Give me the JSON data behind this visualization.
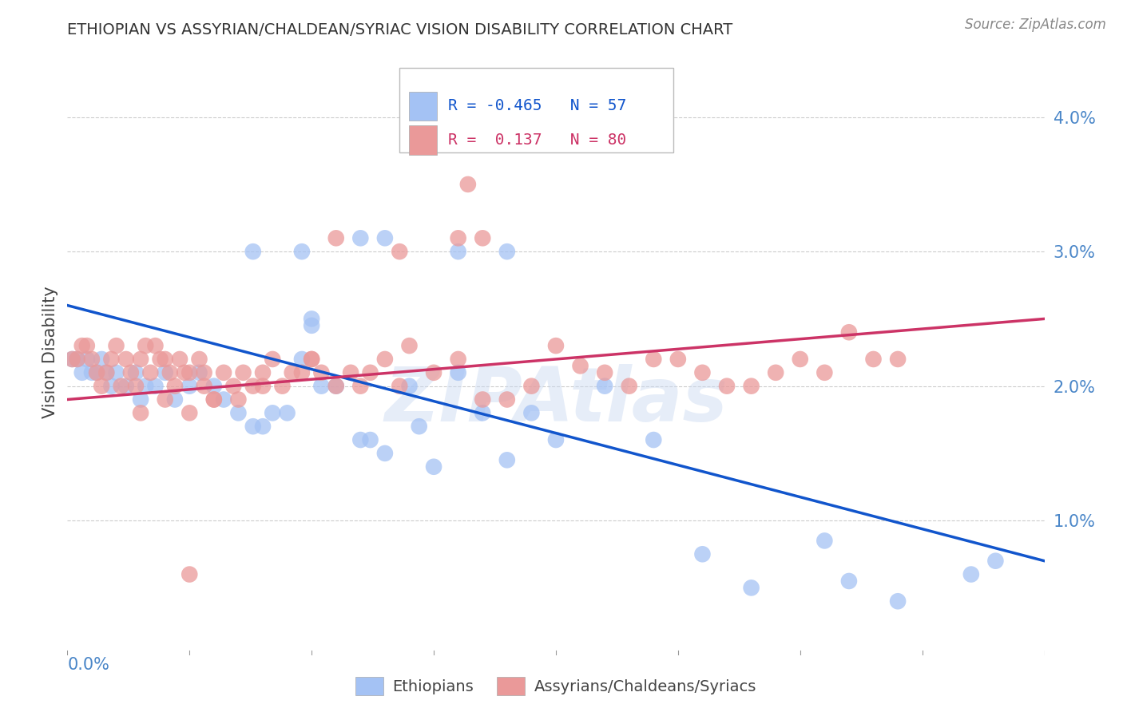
{
  "title": "ETHIOPIAN VS ASSYRIAN/CHALDEAN/SYRIAC VISION DISABILITY CORRELATION CHART",
  "source": "Source: ZipAtlas.com",
  "ylabel": "Vision Disability",
  "xlim": [
    0.0,
    0.2
  ],
  "ylim": [
    0.0,
    0.045
  ],
  "watermark": "ZIPAtlas",
  "legend_R_blue": "-0.465",
  "legend_N_blue": "57",
  "legend_R_pink": "0.137",
  "legend_N_pink": "80",
  "blue_color": "#a4c2f4",
  "pink_color": "#ea9999",
  "line_blue_color": "#1155cc",
  "line_pink_color": "#cc3366",
  "blue_line_start_y": 0.026,
  "blue_line_end_y": 0.007,
  "pink_line_start_y": 0.019,
  "pink_line_end_y": 0.025,
  "background_color": "#ffffff",
  "grid_color": "#cccccc",
  "title_color": "#333333",
  "axis_label_color": "#4a86c8",
  "legend_text_color_blue": "#1155cc",
  "legend_text_color_pink": "#cc3366",
  "blue_x": [
    0.001,
    0.002,
    0.003,
    0.004,
    0.005,
    0.006,
    0.007,
    0.008,
    0.009,
    0.01,
    0.012,
    0.014,
    0.015,
    0.016,
    0.018,
    0.02,
    0.022,
    0.025,
    0.027,
    0.03,
    0.032,
    0.035,
    0.038,
    0.04,
    0.042,
    0.045,
    0.048,
    0.05,
    0.052,
    0.055,
    0.06,
    0.062,
    0.065,
    0.07,
    0.072,
    0.075,
    0.08,
    0.085,
    0.09,
    0.095,
    0.038,
    0.048,
    0.05,
    0.06,
    0.065,
    0.08,
    0.09,
    0.1,
    0.11,
    0.12,
    0.13,
    0.14,
    0.155,
    0.16,
    0.17,
    0.185,
    0.19
  ],
  "blue_y": [
    0.022,
    0.022,
    0.021,
    0.022,
    0.021,
    0.021,
    0.022,
    0.021,
    0.02,
    0.021,
    0.02,
    0.021,
    0.019,
    0.02,
    0.02,
    0.021,
    0.019,
    0.02,
    0.021,
    0.02,
    0.019,
    0.018,
    0.017,
    0.017,
    0.018,
    0.018,
    0.022,
    0.025,
    0.02,
    0.02,
    0.016,
    0.016,
    0.015,
    0.02,
    0.017,
    0.014,
    0.021,
    0.018,
    0.0145,
    0.018,
    0.03,
    0.03,
    0.0245,
    0.031,
    0.031,
    0.03,
    0.03,
    0.016,
    0.02,
    0.016,
    0.0075,
    0.005,
    0.0085,
    0.0055,
    0.004,
    0.006,
    0.007
  ],
  "pink_x": [
    0.001,
    0.002,
    0.003,
    0.004,
    0.005,
    0.006,
    0.007,
    0.008,
    0.009,
    0.01,
    0.011,
    0.012,
    0.013,
    0.014,
    0.015,
    0.016,
    0.017,
    0.018,
    0.019,
    0.02,
    0.021,
    0.022,
    0.023,
    0.024,
    0.025,
    0.027,
    0.028,
    0.03,
    0.032,
    0.034,
    0.036,
    0.038,
    0.04,
    0.042,
    0.044,
    0.046,
    0.048,
    0.05,
    0.052,
    0.055,
    0.058,
    0.06,
    0.062,
    0.065,
    0.068,
    0.07,
    0.075,
    0.08,
    0.082,
    0.085,
    0.09,
    0.095,
    0.1,
    0.105,
    0.11,
    0.115,
    0.12,
    0.125,
    0.13,
    0.135,
    0.14,
    0.145,
    0.15,
    0.155,
    0.16,
    0.165,
    0.17,
    0.025,
    0.03,
    0.035,
    0.028,
    0.04,
    0.05,
    0.055,
    0.068,
    0.08,
    0.085,
    0.02,
    0.015,
    0.025
  ],
  "pink_y": [
    0.022,
    0.022,
    0.023,
    0.023,
    0.022,
    0.021,
    0.02,
    0.021,
    0.022,
    0.023,
    0.02,
    0.022,
    0.021,
    0.02,
    0.022,
    0.023,
    0.021,
    0.023,
    0.022,
    0.022,
    0.021,
    0.02,
    0.022,
    0.021,
    0.021,
    0.022,
    0.02,
    0.019,
    0.021,
    0.02,
    0.021,
    0.02,
    0.02,
    0.022,
    0.02,
    0.021,
    0.021,
    0.022,
    0.021,
    0.02,
    0.021,
    0.02,
    0.021,
    0.022,
    0.02,
    0.023,
    0.021,
    0.022,
    0.035,
    0.019,
    0.019,
    0.02,
    0.023,
    0.0215,
    0.021,
    0.02,
    0.022,
    0.022,
    0.021,
    0.02,
    0.02,
    0.021,
    0.022,
    0.021,
    0.024,
    0.022,
    0.022,
    0.018,
    0.019,
    0.019,
    0.021,
    0.021,
    0.022,
    0.031,
    0.03,
    0.031,
    0.031,
    0.019,
    0.018,
    0.006
  ]
}
